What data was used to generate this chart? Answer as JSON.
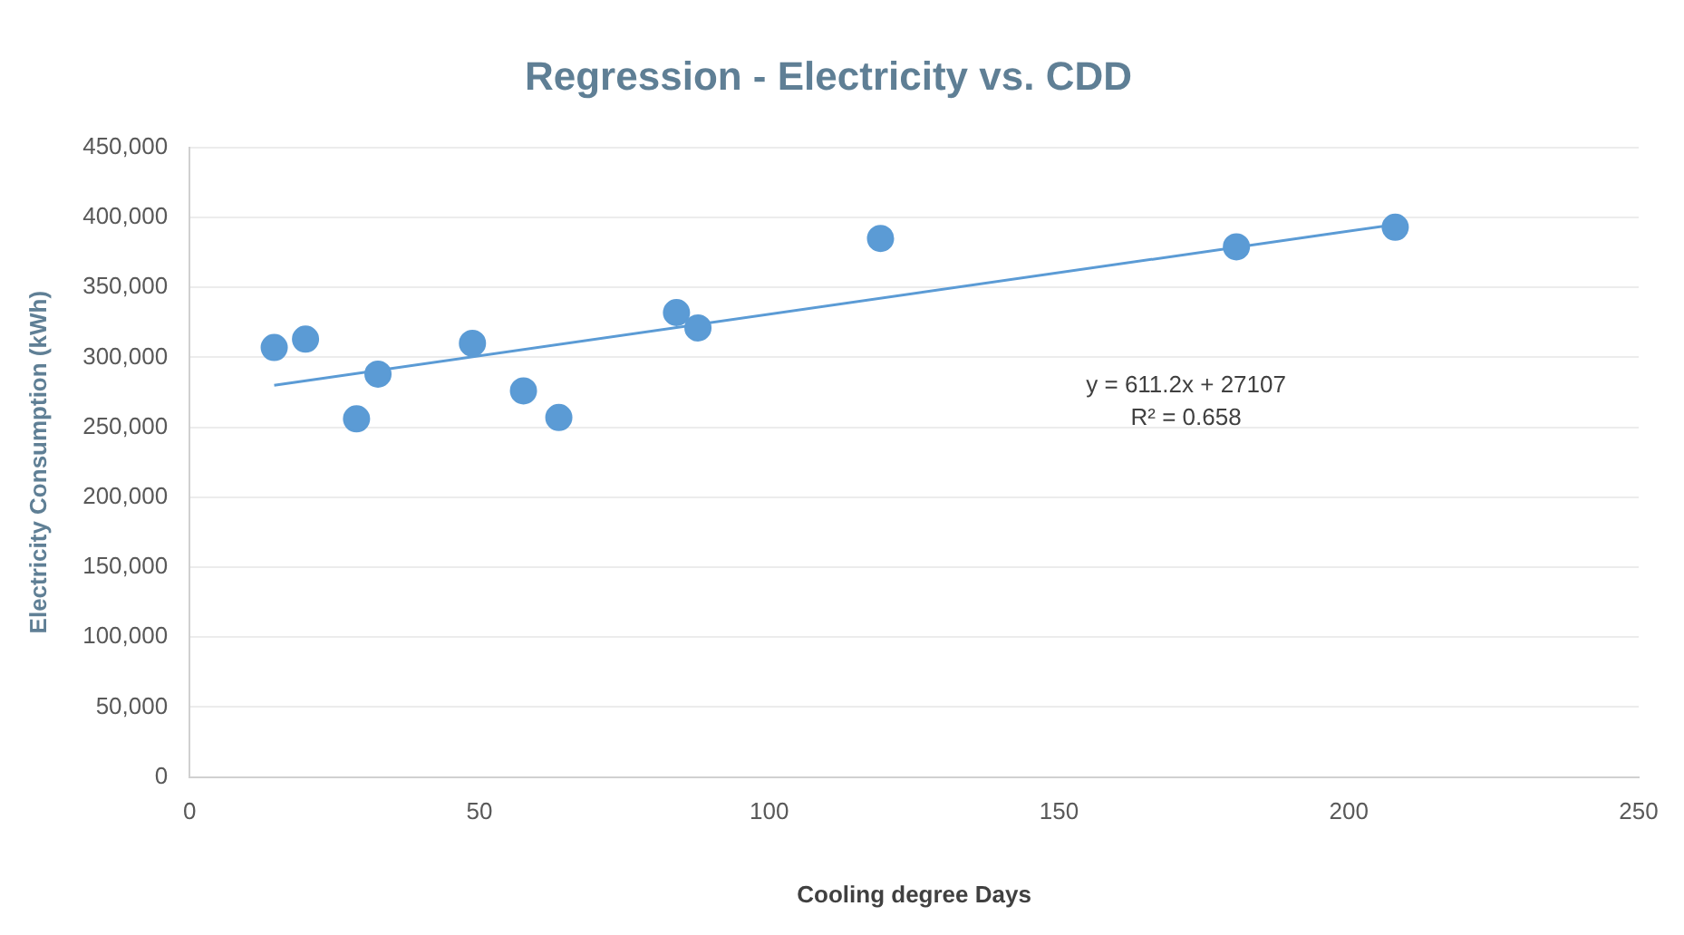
{
  "chart_data": {
    "type": "scatter",
    "title": "Regression - Electricity vs. CDD",
    "xlabel": "Cooling degree Days",
    "ylabel": "Electricity Consumption (kWh)",
    "series": [
      {
        "color": "#5b9bd5",
        "marker": "circle",
        "x": [
          14.6,
          20.0,
          28.8,
          32.5,
          48.8,
          57.6,
          63.7,
          84.0,
          87.7,
          119.2,
          180.6,
          208.0
        ],
        "values": [
          307000,
          313000,
          256000,
          288000,
          310000,
          276000,
          257000,
          332000,
          321000,
          385000,
          379000,
          393000
        ]
      },
      {
        "type": "line",
        "color": "#5b9bd5",
        "marker": "none",
        "x": [
          14.6,
          208.0
        ],
        "values": [
          280000,
          395000
        ]
      }
    ],
    "annotations": [
      "y = 611.2x + 27107",
      "R² = 0.658"
    ],
    "xlim": [
      0,
      250
    ],
    "xticks": [
      0,
      50,
      100,
      150,
      200,
      250
    ],
    "ylim": [
      0,
      450000
    ],
    "yticks": [
      0,
      {
        "value": 50000,
        "label": "50,000"
      },
      {
        "value": 100000,
        "label": "100,000"
      },
      {
        "value": 150000,
        "label": "150,000"
      },
      {
        "value": 200000,
        "label": "200,000"
      },
      {
        "value": 250000,
        "label": "250,000"
      },
      {
        "value": 300000,
        "label": "300,000"
      },
      {
        "value": 350000,
        "label": "350,000"
      },
      {
        "value": 400000,
        "label": "400,000"
      },
      {
        "value": 450000,
        "label": "450,000"
      }
    ],
    "grid": "y",
    "legend": false
  }
}
